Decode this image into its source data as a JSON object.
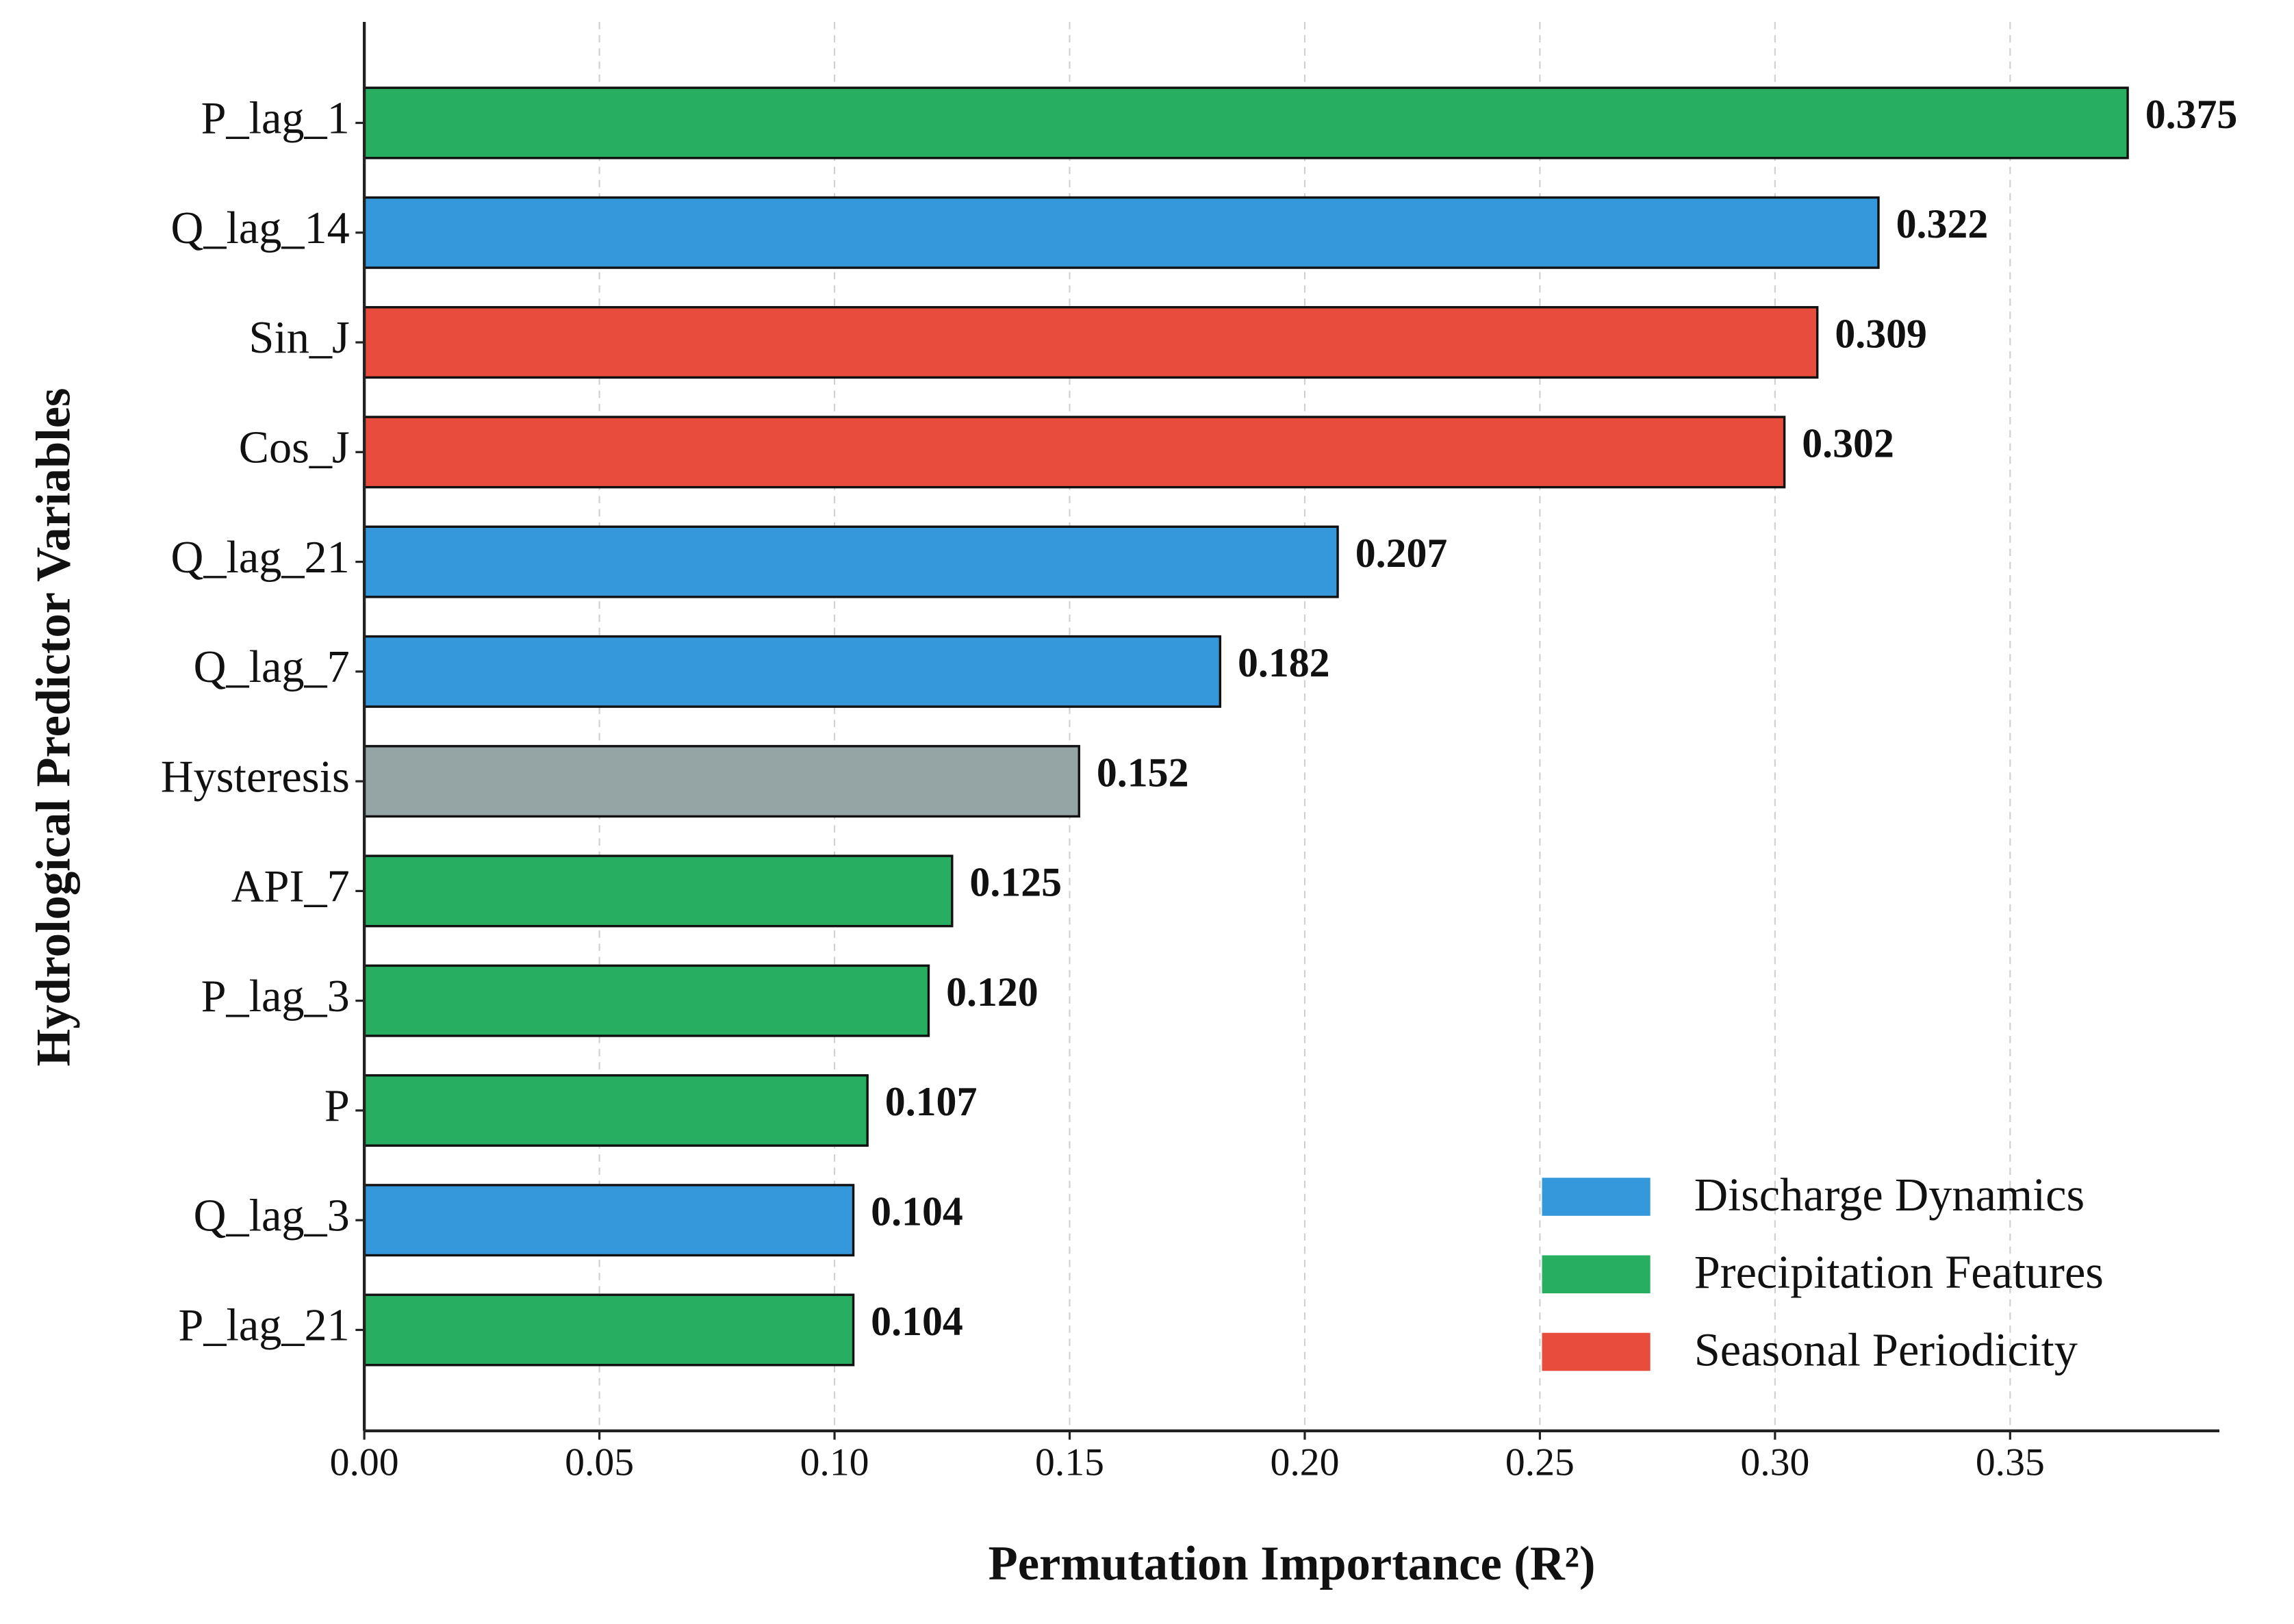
{
  "chart_data": {
    "type": "barh",
    "xlabel": "Permutation Importance (R²)",
    "ylabel": "Hydrological Predictor Variables",
    "categories": [
      "P_lag_1",
      "Q_lag_14",
      "Sin_J",
      "Cos_J",
      "Q_lag_21",
      "Q_lag_7",
      "Hysteresis",
      "API_7",
      "P_lag_3",
      "P",
      "Q_lag_3",
      "P_lag_21"
    ],
    "values": [
      0.375,
      0.322,
      0.309,
      0.302,
      0.207,
      0.182,
      0.152,
      0.125,
      0.12,
      0.107,
      0.104,
      0.104
    ],
    "value_labels": [
      "0.375",
      "0.322",
      "0.309",
      "0.302",
      "0.207",
      "0.182",
      "0.152",
      "0.125",
      "0.120",
      "0.107",
      "0.104",
      "0.104"
    ],
    "colors": [
      "#27ae60",
      "#3498db",
      "#e74c3c",
      "#e74c3c",
      "#3498db",
      "#3498db",
      "#95a5a6",
      "#27ae60",
      "#27ae60",
      "#27ae60",
      "#3498db",
      "#27ae60"
    ],
    "xlim": [
      0,
      0.3945
    ],
    "xticks": [
      {
        "value": 0,
        "label": "0.00"
      },
      {
        "value": 0.05,
        "label": "0.05"
      },
      {
        "value": 0.1,
        "label": "0.10"
      },
      {
        "value": 0.15,
        "label": "0.15"
      },
      {
        "value": 0.2,
        "label": "0.20"
      },
      {
        "value": 0.25,
        "label": "0.25"
      },
      {
        "value": 0.3,
        "label": "0.30"
      },
      {
        "value": 0.35,
        "label": "0.35"
      }
    ],
    "grid": true,
    "legend_position": "lower right",
    "legend": [
      {
        "name": "Discharge Dynamics",
        "color": "#3498db"
      },
      {
        "name": "Precipitation Features",
        "color": "#27ae60"
      },
      {
        "name": "Seasonal Periodicity",
        "color": "#e74c3c"
      }
    ]
  }
}
